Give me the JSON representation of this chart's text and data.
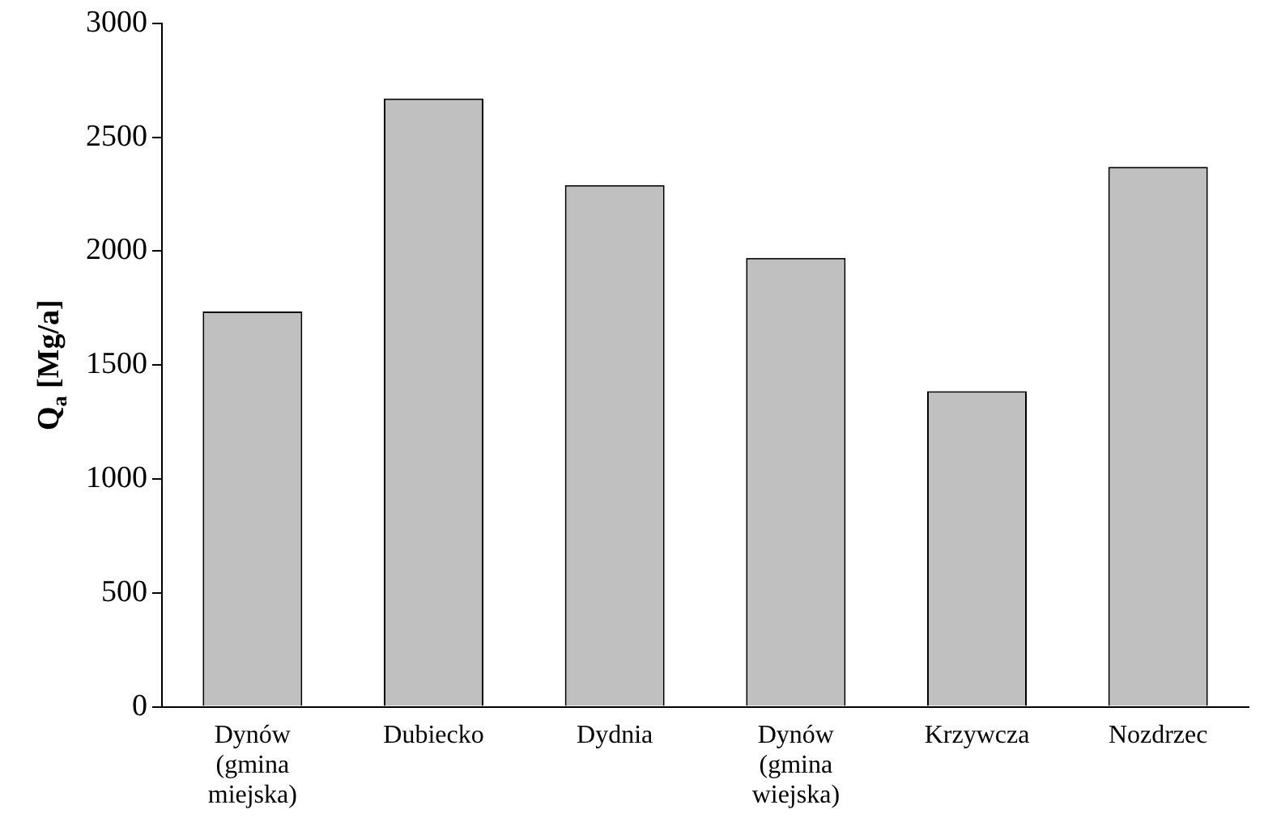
{
  "chart_data": {
    "type": "bar",
    "ylabel": "Q$_{a}$ [Mg/a]",
    "categories": [
      "Dynów (gmina miejska)",
      "Dubiecko",
      "Dydnia",
      "Dynów (gmina wiejska)",
      "Krzywcza",
      "Nozdrzec"
    ],
    "values": [
      1735,
      2670,
      2290,
      1970,
      1385,
      2370
    ],
    "color": "#c0c0c0",
    "ylim": [
      0,
      3000
    ],
    "yticks": [
      0,
      500,
      1000,
      1500,
      2000,
      2500,
      3000
    ],
    "grid": false,
    "legend": false
  }
}
